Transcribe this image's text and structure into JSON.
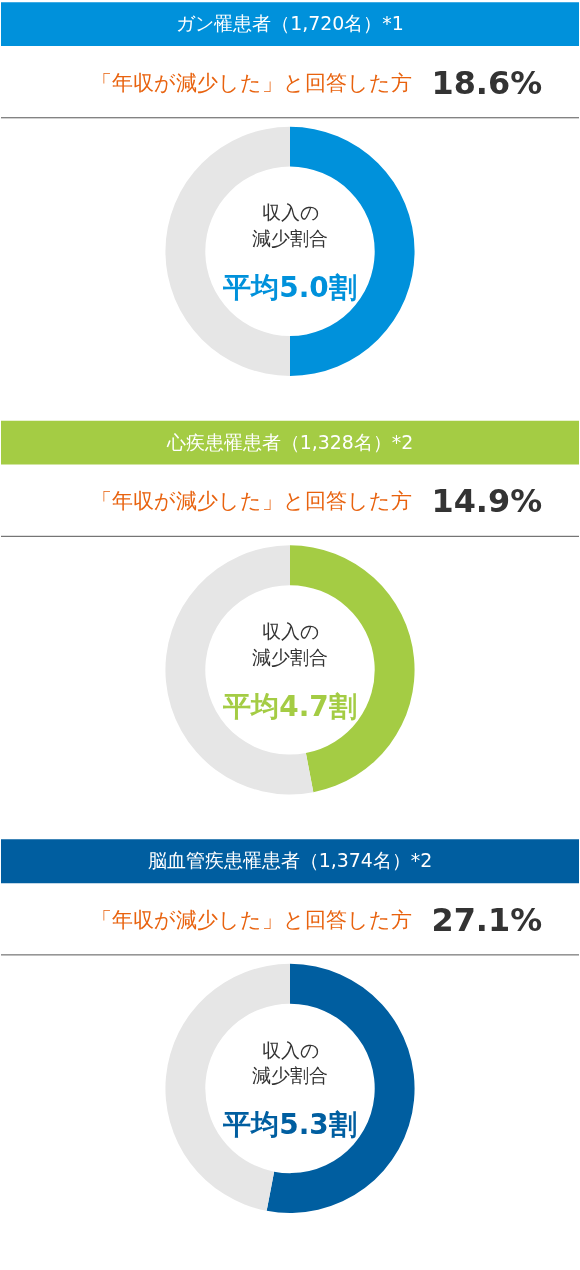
{
  "chart_data": [
    {
      "type": "donut",
      "title": "ガン罹患者（1,720名）*1",
      "subtitle": "「年収が減少した」と回答した方",
      "categories": [
        null,
        null
      ],
      "values": [
        50,
        50
      ],
      "colors": [
        "#0091db",
        "#e6e6e6"
      ],
      "annotations": [
        "18.6%",
        "収入の",
        "減少割合",
        "平均5.0割"
      ]
    },
    {
      "type": "donut",
      "title": "心疾患罹患者（1,328名）*2",
      "subtitle": "「年収が減少した」と回答した方",
      "categories": [
        null,
        null
      ],
      "values": [
        47,
        53
      ],
      "colors": [
        "#a4cc44",
        "#e6e6e6"
      ],
      "annotations": [
        "14.9%",
        "収入の",
        "減少割合",
        "平均4.7割"
      ]
    },
    {
      "type": "donut",
      "title": "脳血管疾患罹患者（1,374名）*2",
      "subtitle": "「年収が減少した」と回答した方",
      "categories": [
        null,
        null
      ],
      "values": [
        53,
        47
      ],
      "colors": [
        "#005ea0",
        "#e6e6e6"
      ],
      "annotations": [
        "27.1%",
        "収入の",
        "減少割合",
        "平均5.3割"
      ]
    }
  ]
}
